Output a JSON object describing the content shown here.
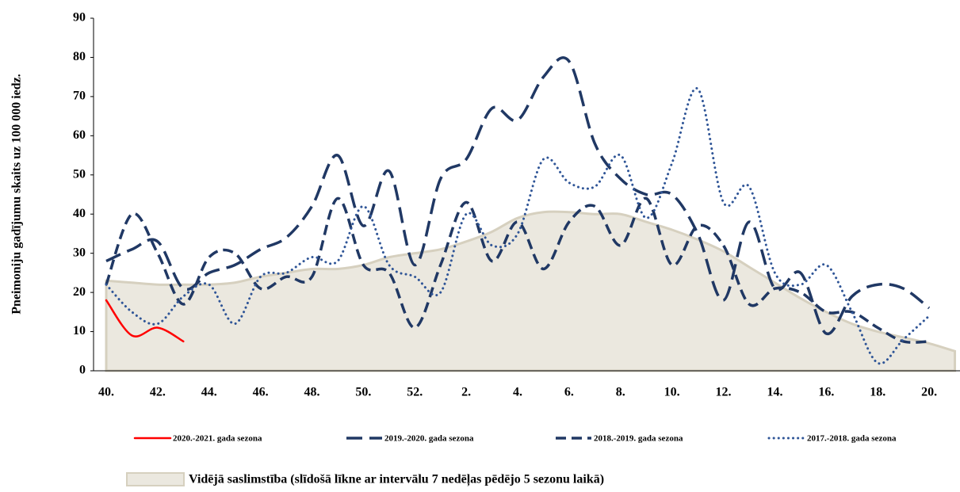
{
  "chart_data": {
    "type": "line",
    "y_label": "Pneimoniju gadījumu skaits uz 100 000 iedz.",
    "categories": [
      "40.",
      null,
      "42.",
      null,
      "44.",
      null,
      "46.",
      null,
      "48.",
      null,
      "50.",
      null,
      "52.",
      null,
      "2.",
      null,
      "4.",
      null,
      "6.",
      null,
      "8.",
      null,
      "10.",
      null,
      "12.",
      null,
      "14.",
      null,
      "16.",
      null,
      "18.",
      null,
      "20.",
      null
    ],
    "ylim": [
      0,
      90
    ],
    "yticks": [
      0,
      10,
      20,
      30,
      40,
      50,
      60,
      70,
      80,
      90
    ],
    "series": [
      {
        "name": "Vidējā saslimstība (slīdošā līkne ar intervālu 7 nedēļas pēdējo 5 sezonu laikā)",
        "style": "area",
        "color": "#ebe8df",
        "values": [
          23,
          22.5,
          22,
          22,
          22,
          22.5,
          24,
          25,
          26,
          26,
          27,
          29,
          30,
          31,
          33,
          35.5,
          39,
          40.5,
          40.5,
          40,
          40,
          38,
          36,
          33.5,
          30.5,
          26.5,
          22.5,
          18.5,
          15,
          12,
          10,
          8.5,
          7,
          5
        ]
      },
      {
        "name": "2020.-2021. gada sezona",
        "style": "solid",
        "color": "#ff0000",
        "values": [
          18,
          9,
          11,
          7.5,
          null,
          null,
          null,
          null,
          null,
          null,
          null,
          null,
          null,
          null,
          null,
          null,
          null,
          null,
          null,
          null,
          null,
          null,
          null,
          null,
          null,
          null,
          null,
          null,
          null,
          null,
          null,
          null,
          null,
          null
        ]
      },
      {
        "name": "2019.-2020. gada sezona",
        "style": "longdash",
        "color": "#203864",
        "values": [
          28,
          31,
          33,
          21,
          25,
          27,
          31,
          34,
          42,
          55,
          37,
          51,
          27,
          49,
          54,
          67,
          64,
          75,
          79,
          58,
          49,
          45,
          45,
          35,
          18,
          38,
          21,
          25,
          9.5,
          19,
          22,
          21,
          16,
          null
        ]
      },
      {
        "name": "2018.-2019. gada sezona",
        "style": "dash",
        "color": "#203864",
        "values": [
          22,
          40,
          30,
          17,
          29,
          30,
          21,
          24,
          24,
          44,
          27,
          25,
          11,
          27,
          43,
          28,
          38,
          26,
          38,
          42,
          32,
          44,
          27,
          37,
          32,
          17,
          21,
          20,
          15,
          15,
          11,
          7.5,
          7.5,
          null
        ]
      },
      {
        "name": "2017.-2018. gada sezona",
        "style": "dot",
        "color": "#2f5597",
        "values": [
          22,
          15,
          12,
          19,
          22,
          12,
          24,
          25,
          29,
          28,
          42,
          27,
          24,
          20,
          40,
          32,
          35,
          54,
          48,
          47,
          55,
          39,
          53,
          72,
          43,
          47,
          25,
          22,
          27,
          15,
          2,
          8,
          14,
          null
        ]
      }
    ]
  }
}
